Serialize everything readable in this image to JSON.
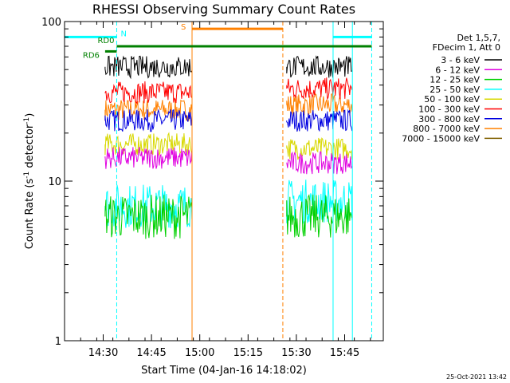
{
  "chart_data": {
    "type": "line",
    "title": "RHESSI Observing Summary Count Rates",
    "xlabel": "Start Time (04-Jan-16 14:18:02)",
    "ylabel_main": "Count Rate (s",
    "ylabel_sup1": "-1",
    "ylabel_mid": " detector",
    "ylabel_sup2": "-1",
    "ylabel_end": ")",
    "y_scale": "log",
    "ylim": [
      1,
      100
    ],
    "xlim_minutes": [
      14.3,
      15.95
    ],
    "x_ticks": [
      {
        "t": 14.5,
        "label": "14:30"
      },
      {
        "t": 14.75,
        "label": "14:45"
      },
      {
        "t": 15.0,
        "label": "15:00"
      },
      {
        "t": 15.25,
        "label": "15:15"
      },
      {
        "t": 15.5,
        "label": "15:30"
      },
      {
        "t": 15.75,
        "label": "15:45"
      }
    ],
    "y_ticks": [
      {
        "v": 1,
        "label": "1"
      },
      {
        "v": 10,
        "label": "10"
      },
      {
        "v": 100,
        "label": "100"
      }
    ],
    "legend_header": [
      "Det 1,5,7,",
      "FDecim 1, Att 0"
    ],
    "series": [
      {
        "name": "3 - 6 keV",
        "color": "#000000",
        "seg1": 52,
        "seg2": 52
      },
      {
        "name": "6 - 12 keV",
        "color": "#e000e0",
        "seg1": 14,
        "seg2": 13
      },
      {
        "name": "12 - 25 keV",
        "color": "#00d000",
        "seg1": 6,
        "seg2": 6
      },
      {
        "name": "25 - 50 keV",
        "color": "#00ffff",
        "seg1": 7,
        "seg2": 7.5
      },
      {
        "name": "50 - 100 keV",
        "color": "#d8d800",
        "seg1": 17,
        "seg2": 16
      },
      {
        "name": "100 - 300 keV",
        "color": "#ff0000",
        "seg1": 36,
        "seg2": 38
      },
      {
        "name": "300 - 800 keV",
        "color": "#0000e0",
        "seg1": 24,
        "seg2": 24
      },
      {
        "name": "800 - 7000 keV",
        "color": "#ff8000",
        "seg1": 28,
        "seg2": 30
      },
      {
        "name": "7000 - 15000 keV",
        "color": "#806000",
        "seg1": null,
        "seg2": null
      }
    ],
    "intervals": [
      {
        "label": "N",
        "color": "#00ffff",
        "level": 80,
        "segments": [
          [
            14.3,
            14.57
          ],
          [
            15.69,
            15.89
          ]
        ]
      },
      {
        "label": "S",
        "color": "#ff8000",
        "level": 90,
        "segments": [
          [
            14.96,
            15.43
          ]
        ]
      },
      {
        "label": "RD0",
        "color": "#008000",
        "level": 70,
        "segments": [
          [
            14.57,
            15.89
          ]
        ]
      },
      {
        "label": "RD6",
        "color": "#008000",
        "level": 65,
        "segments": [
          [
            14.51,
            14.57
          ]
        ]
      }
    ],
    "segments_time": [
      [
        14.51,
        14.96
      ],
      [
        15.45,
        15.79
      ]
    ],
    "vlines": [
      {
        "t": 14.3,
        "color": "#00ffff",
        "dashed": false
      },
      {
        "t": 14.57,
        "color": "#00ffff",
        "dashed": true
      },
      {
        "t": 14.96,
        "color": "#ff8000",
        "dashed": false
      },
      {
        "t": 15.43,
        "color": "#ff8000",
        "dashed": true
      },
      {
        "t": 15.69,
        "color": "#00ffff",
        "dashed": false
      },
      {
        "t": 15.79,
        "color": "#00ffff",
        "dashed": false
      },
      {
        "t": 15.89,
        "color": "#00ffff",
        "dashed": true
      }
    ],
    "timestamp": "25-Oct-2021 13:42"
  }
}
